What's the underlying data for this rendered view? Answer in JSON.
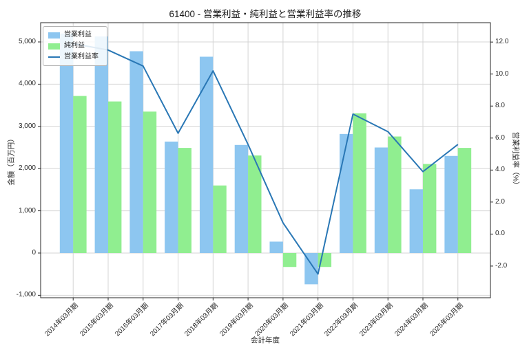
{
  "title": "61400 - 営業利益・純利益と営業利益率の推移",
  "chart_data": {
    "type": "bar",
    "subtype": "grouped-bars-with-line",
    "title": "61400 - 営業利益・純利益と営業利益率の推移",
    "xlabel": "会計年度",
    "ylabel_left": "金額（百万円）",
    "ylabel_right": "営業利益率（%）",
    "grid": true,
    "legend_position": "upper left",
    "legend": [
      "営業利益",
      "純利益",
      "営業利益率"
    ],
    "categories": [
      "2014年03月期",
      "2015年03月期",
      "2016年03月期",
      "2017年03月期",
      "2018年03月期",
      "2019年03月期",
      "2020年03月期",
      "2021年03月期",
      "2022年03月期",
      "2023年03月期",
      "2024年03月期",
      "2025年03月期"
    ],
    "series": [
      {
        "name": "営業利益",
        "type": "bar",
        "axis": "left",
        "color": "#8DC6F0",
        "values": [
          5200,
          5130,
          4780,
          2640,
          4650,
          2560,
          270,
          -740,
          2820,
          2500,
          1510,
          2300
        ]
      },
      {
        "name": "純利益",
        "type": "bar",
        "axis": "left",
        "color": "#90EE90",
        "values": [
          3720,
          3590,
          3350,
          2490,
          1600,
          2310,
          -330,
          -330,
          3310,
          2760,
          2110,
          2490
        ]
      },
      {
        "name": "営業利益率",
        "type": "line",
        "axis": "right",
        "color": "#2977B5",
        "values": [
          11.9,
          11.5,
          10.5,
          6.3,
          10.2,
          5.6,
          0.7,
          -2.5,
          7.5,
          6.4,
          3.9,
          5.6
        ]
      }
    ],
    "left_axis": {
      "min": -1059,
      "max": 5456,
      "ticks": [
        -1000,
        0,
        1000,
        2000,
        3000,
        4000,
        5000
      ],
      "tick_labels": [
        "-1,000",
        "0",
        "1,000",
        "2,000",
        "3,000",
        "4,000",
        "5,000"
      ]
    },
    "right_axis": {
      "min": -3.98,
      "max": 13.21,
      "ticks": [
        -2,
        0,
        2,
        4,
        6,
        8,
        10,
        12
      ],
      "tick_labels": [
        "-2.0",
        "0.0",
        "2.0",
        "4.0",
        "6.0",
        "8.0",
        "10.0",
        "12.0"
      ]
    },
    "colors": {
      "grid": "#d4d4d4",
      "spine": "#262626",
      "background": "#ffffff"
    }
  }
}
